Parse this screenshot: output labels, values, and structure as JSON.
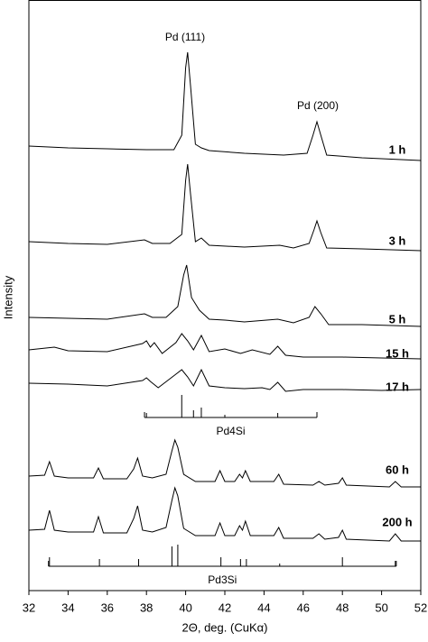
{
  "chart_data": {
    "type": "line",
    "xlabel": "2Θ, deg. (CuKα)",
    "ylabel": "Intensity",
    "annotations": [
      "Pd (111)",
      "Pd (200)"
    ],
    "xlim": [
      32,
      52
    ],
    "xticks": [
      32,
      34,
      36,
      38,
      40,
      42,
      44,
      46,
      48,
      50,
      52
    ],
    "ylim": [
      0,
      655
    ],
    "series": [
      {
        "name": "1 h",
        "color": "#000000",
        "x": [
          32,
          34,
          36,
          38,
          39.4,
          39.8,
          40.0,
          40.1,
          40.25,
          40.5,
          40.8,
          41.2,
          43,
          45,
          46.2,
          46.5,
          46.7,
          46.9,
          47.2,
          49,
          52
        ],
        "values": [
          493,
          491,
          490,
          489,
          489,
          505,
          580,
          597,
          560,
          495,
          491,
          488,
          485,
          483,
          485,
          505,
          520,
          505,
          483,
          480,
          477
        ]
      },
      {
        "name": "3 h",
        "color": "#000000",
        "x": [
          32,
          34,
          36,
          37.9,
          38.3,
          39.2,
          39.8,
          40.0,
          40.1,
          40.25,
          40.5,
          40.8,
          41.2,
          43,
          44.8,
          45.5,
          46.3,
          46.55,
          46.7,
          46.9,
          47.2,
          49,
          52
        ],
        "values": [
          387,
          385,
          384,
          389,
          385,
          385,
          395,
          455,
          473,
          440,
          387,
          391,
          383,
          381,
          383,
          380,
          385,
          400,
          410,
          397,
          380,
          379,
          377
        ]
      },
      {
        "name": "5 h",
        "color": "#000000",
        "x": [
          32,
          34,
          36,
          37.9,
          38.3,
          39.0,
          39.6,
          39.9,
          40.05,
          40.3,
          40.7,
          41.2,
          42,
          43,
          44.7,
          45.5,
          46.3,
          46.6,
          46.9,
          47.3,
          49,
          52
        ],
        "values": [
          303,
          302,
          301,
          307,
          303,
          303,
          315,
          350,
          361,
          325,
          311,
          301,
          300,
          298,
          301,
          297,
          303,
          315,
          307,
          295,
          295,
          293
        ]
      },
      {
        "name": "15 h",
        "color": "#000000",
        "x": [
          32,
          33.3,
          34,
          36,
          37.8,
          38.0,
          38.2,
          38.4,
          38.8,
          39.5,
          39.8,
          40.1,
          40.4,
          40.8,
          41.2,
          42,
          42.8,
          43.4,
          44.3,
          44.7,
          45.1,
          46,
          48,
          50,
          52
        ],
        "values": [
          267,
          270,
          266,
          265,
          274,
          277,
          270,
          275,
          263,
          275,
          285,
          277,
          267,
          283,
          265,
          268,
          263,
          267,
          262,
          271,
          261,
          259,
          259,
          258,
          257
        ]
      },
      {
        "name": "17 h",
        "color": "#000000",
        "x": [
          32,
          34,
          36,
          37.8,
          38.0,
          38.2,
          38.6,
          39.5,
          39.8,
          40.1,
          40.4,
          40.8,
          41.2,
          42,
          43,
          43.9,
          44.3,
          44.7,
          45.1,
          46,
          48,
          50,
          52
        ],
        "values": [
          230,
          229,
          227,
          233,
          236,
          232,
          225,
          240,
          245,
          237,
          227,
          245,
          227,
          225,
          224,
          225,
          223,
          231,
          221,
          223,
          223,
          222,
          223
        ]
      },
      {
        "name": "60 h",
        "color": "#000000",
        "x": [
          32,
          32.8,
          33.05,
          33.3,
          34,
          35.3,
          35.55,
          35.8,
          37,
          37.35,
          37.55,
          37.8,
          38.3,
          39.0,
          39.3,
          39.45,
          39.6,
          39.9,
          40.5,
          41.5,
          41.75,
          42,
          42.5,
          42.75,
          42.9,
          43.05,
          43.3,
          44.5,
          44.75,
          45,
          46.5,
          46.8,
          47.1,
          47.8,
          48.0,
          48.2,
          50.4,
          50.7,
          51,
          52
        ],
        "values": [
          127,
          128,
          143,
          127,
          125,
          125,
          136,
          124,
          124,
          135,
          147,
          127,
          125,
          129,
          155,
          167,
          159,
          129,
          121,
          121,
          133,
          121,
          121,
          129,
          125,
          133,
          121,
          121,
          129,
          118,
          117,
          121,
          117,
          119,
          125,
          117,
          115,
          121,
          115,
          115
        ]
      },
      {
        "name": "200 h",
        "color": "#000000",
        "x": [
          32,
          32.8,
          33.05,
          33.3,
          34,
          35.3,
          35.55,
          35.8,
          37,
          37.35,
          37.55,
          37.8,
          38.3,
          39.0,
          39.3,
          39.45,
          39.6,
          39.9,
          40.5,
          41.5,
          41.75,
          42,
          42.5,
          42.75,
          42.9,
          43.05,
          43.3,
          44.5,
          44.75,
          45,
          46.5,
          46.8,
          47.1,
          47.8,
          48.0,
          48.2,
          50.4,
          50.7,
          51,
          52
        ],
        "values": [
          67,
          68,
          89,
          67,
          65,
          65,
          82,
          64,
          64,
          80,
          94,
          67,
          65,
          70,
          100,
          114,
          105,
          69,
          61,
          61,
          75,
          61,
          61,
          72,
          67,
          77,
          61,
          61,
          70,
          58,
          58,
          63,
          57,
          59,
          67,
          57,
          55,
          63,
          55,
          55
        ]
      }
    ],
    "references": [
      {
        "name": "Pd4Si",
        "range": [
          37.9,
          46.7
        ],
        "base": 192,
        "positions": [
          38.0,
          39.8,
          40.4,
          40.8,
          42.0,
          44.7
        ],
        "heights": [
          197,
          217,
          200,
          203,
          195,
          197
        ]
      },
      {
        "name": "Pd3Si",
        "range": [
          33.0,
          50.75
        ],
        "base": 27,
        "positions": [
          33.05,
          35.6,
          37.6,
          39.3,
          39.6,
          41.8,
          42.8,
          43.1,
          44.8,
          48.0,
          50.7
        ],
        "heights": [
          37,
          35,
          35,
          49,
          51,
          37,
          35,
          35,
          30,
          37,
          33
        ]
      }
    ]
  }
}
